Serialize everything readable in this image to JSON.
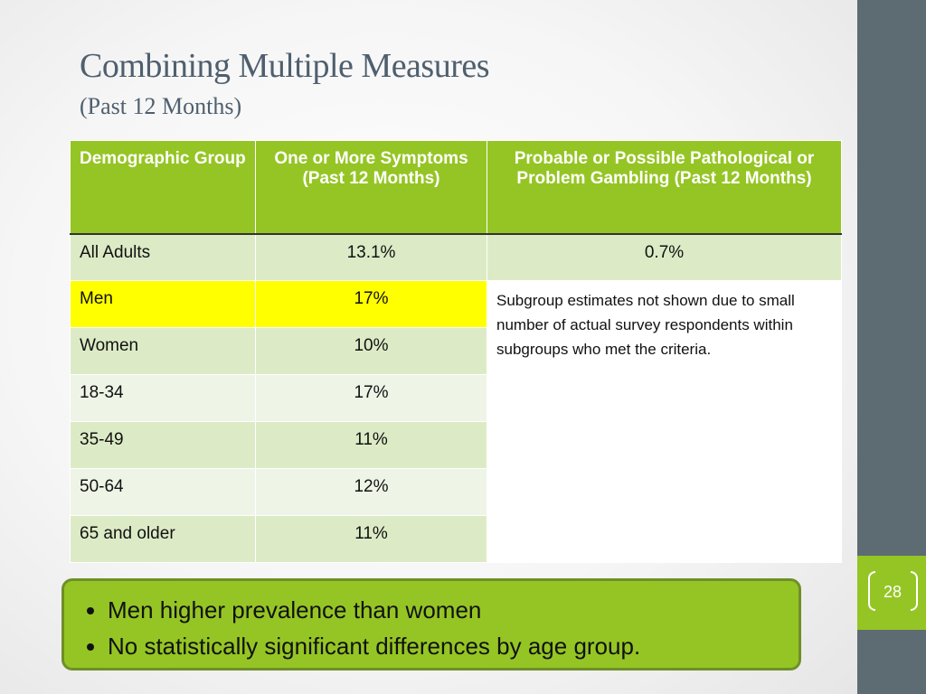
{
  "slide": {
    "title": "Combining Multiple Measures",
    "subtitle": "(Past 12 Months)",
    "page_number": "28"
  },
  "table": {
    "headers": [
      "Demographic Group",
      "One or More Symptoms\n(Past 12 Months)",
      "Probable or Possible Pathological or Problem Gambling (Past 12 Months)"
    ],
    "rows": [
      {
        "group": "All Adults",
        "symptoms": "13.1%",
        "pathological": "0.7%"
      },
      {
        "group": "Men",
        "symptoms": "17%"
      },
      {
        "group": "Women",
        "symptoms": "10%"
      },
      {
        "group": "18-34",
        "symptoms": "17%"
      },
      {
        "group": "35-49",
        "symptoms": "11%"
      },
      {
        "group": "50-64",
        "symptoms": "12%"
      },
      {
        "group": "65 and older",
        "symptoms": "11%"
      }
    ],
    "note": "Subgroup estimates not shown due to small number of actual survey respondents within subgroups who met the criteria."
  },
  "callout": {
    "bullets": [
      "Men higher prevalence than women",
      "No statistically significant differences by age group."
    ]
  }
}
